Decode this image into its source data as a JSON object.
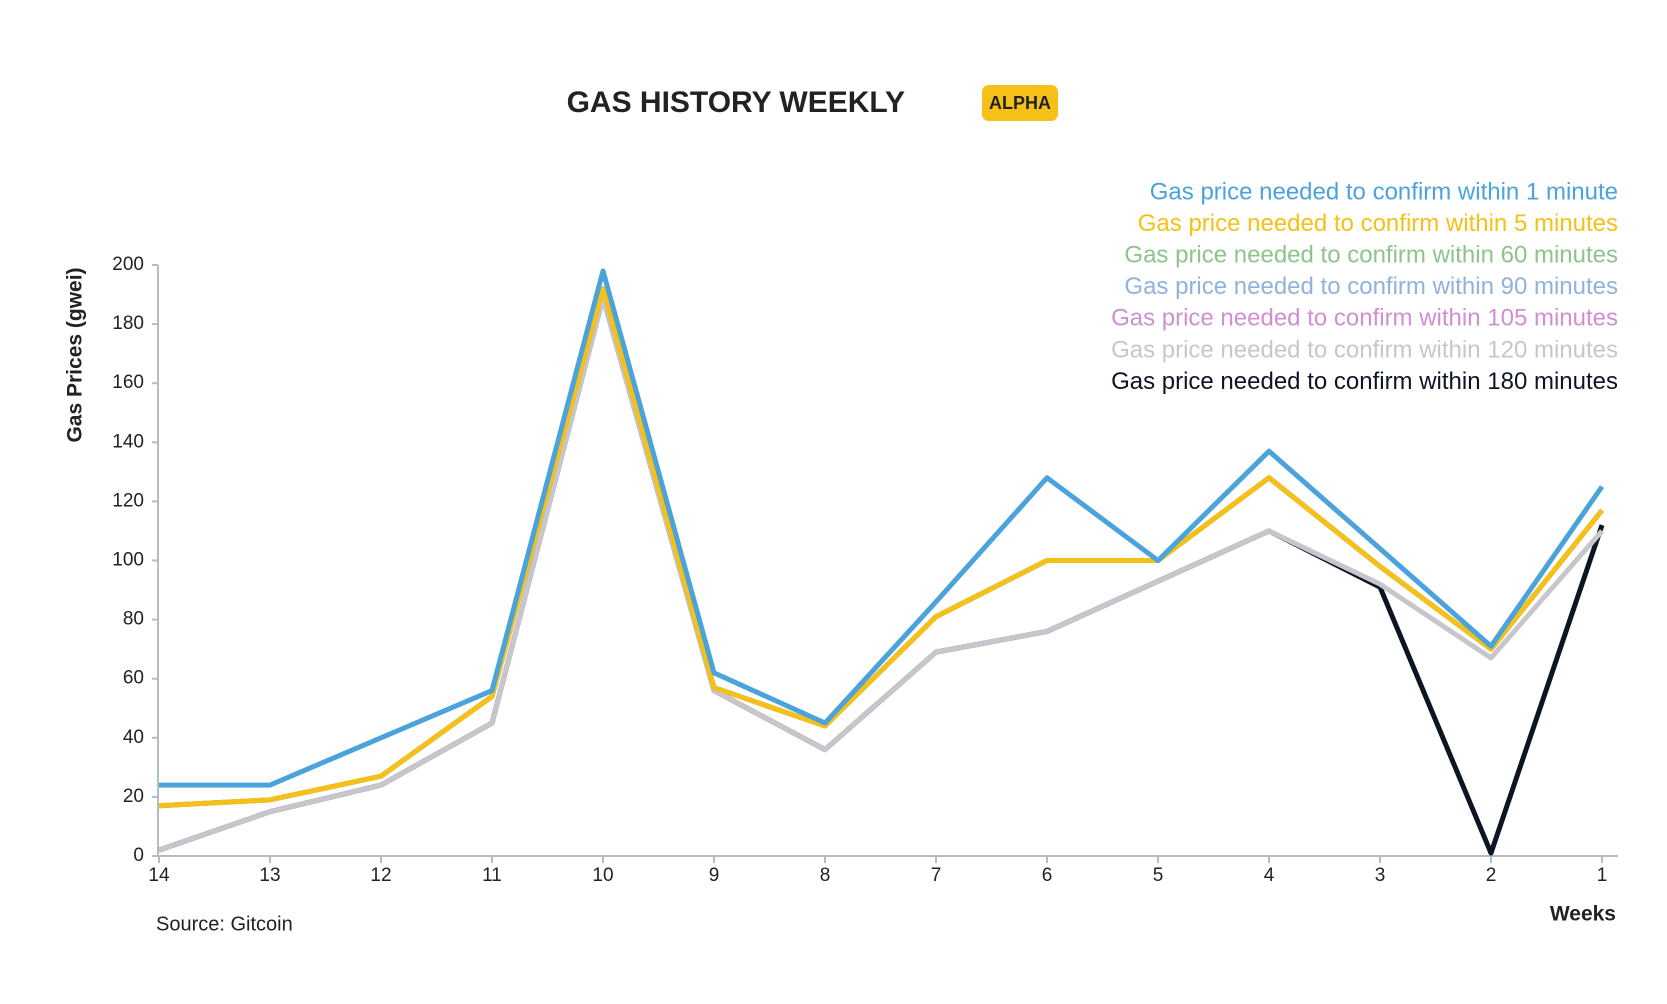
{
  "chart_data": {
    "type": "line",
    "title": "GAS HISTORY WEEKLY",
    "badge": "ALPHA",
    "y_label": "Gas Prices (gwei)",
    "x_label": "Weeks",
    "source": "Source: Gitcoin",
    "categories": [
      "14",
      "13",
      "12",
      "11",
      "10",
      "9",
      "8",
      "7",
      "6",
      "5",
      "4",
      "3",
      "2",
      "1"
    ],
    "ylim": [
      0,
      200
    ],
    "yticks": [
      0,
      20,
      40,
      60,
      80,
      100,
      120,
      140,
      160,
      180,
      200
    ],
    "legend": "top-right",
    "series": [
      {
        "name": "Gas price needed to confirm within 1 minute",
        "color": "#4aa3db",
        "values": [
          24,
          24,
          40,
          56,
          198,
          62,
          45,
          86,
          128,
          100,
          137,
          104,
          71,
          125
        ]
      },
      {
        "name": "Gas price needed to confirm within 5 minutes",
        "color": "#f5c018",
        "values": [
          17,
          19,
          27,
          54,
          192,
          57,
          44,
          81,
          100,
          100,
          128,
          98,
          70,
          117
        ]
      },
      {
        "name": "Gas price needed to confirm within 60 minutes",
        "color": "#8cc48a",
        "values": [
          17,
          19,
          27,
          54,
          192,
          57,
          44,
          81,
          100,
          100,
          128,
          98,
          70,
          117
        ]
      },
      {
        "name": "Gas price needed to confirm within 90 minutes",
        "color": "#8fb3dc",
        "values": [
          17,
          19,
          27,
          54,
          192,
          57,
          44,
          81,
          100,
          100,
          128,
          98,
          70,
          117
        ]
      },
      {
        "name": "Gas price needed to confirm within 105 minutes",
        "color": "#d08fd0",
        "values": [
          17,
          19,
          27,
          54,
          192,
          57,
          44,
          81,
          100,
          100,
          128,
          98,
          70,
          117
        ]
      },
      {
        "name": "Gas price needed to confirm within 120 minutes",
        "color": "#c8c6cc",
        "values": [
          2,
          15,
          24,
          45,
          189,
          56,
          36,
          69,
          76,
          93,
          110,
          92,
          67,
          110
        ]
      },
      {
        "name": "Gas price needed to confirm within 180 minutes",
        "color": "#0d1424",
        "values": [
          2,
          15,
          24,
          45,
          189,
          56,
          36,
          69,
          76,
          93,
          110,
          91,
          1,
          112
        ]
      }
    ]
  }
}
